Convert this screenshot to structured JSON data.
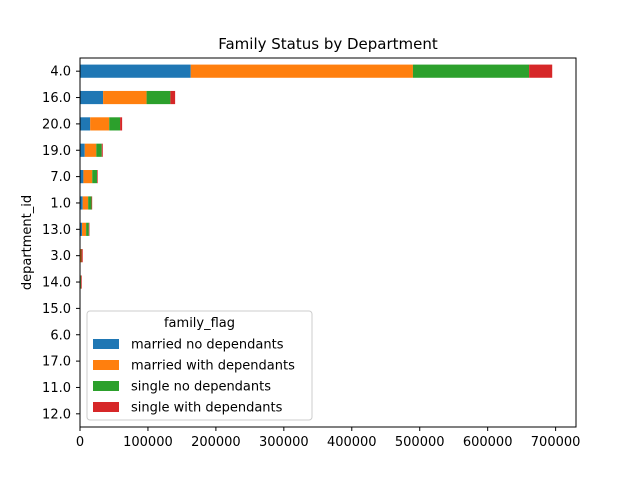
{
  "chart_data": {
    "type": "bar",
    "orientation": "horizontal",
    "stacked": true,
    "title": "Family Status by Department",
    "ylabel": "department_id",
    "xlabel": "",
    "categories": [
      "4.0",
      "16.0",
      "20.0",
      "19.0",
      "7.0",
      "1.0",
      "13.0",
      "3.0",
      "14.0",
      "15.0",
      "6.0",
      "17.0",
      "11.0",
      "12.0"
    ],
    "xlim": [
      0,
      730000
    ],
    "xticks": [
      0,
      100000,
      200000,
      300000,
      400000,
      500000,
      600000,
      700000
    ],
    "xtick_labels": [
      "0",
      "100000",
      "200000",
      "300000",
      "400000",
      "500000",
      "600000",
      "700000"
    ],
    "grid": false,
    "legend": {
      "title": "family_flag",
      "placement": "lower-left"
    },
    "series": [
      {
        "name": "married no dependants",
        "color": "#1f77b4",
        "values": [
          163000,
          34000,
          15000,
          7000,
          5000,
          4000,
          3000,
          500,
          300,
          0,
          0,
          0,
          0,
          0
        ]
      },
      {
        "name": "married with dependants",
        "color": "#ff7f0e",
        "values": [
          327000,
          64000,
          28000,
          17000,
          13000,
          8000,
          6000,
          1000,
          700,
          0,
          0,
          0,
          0,
          0
        ]
      },
      {
        "name": "single no dependants",
        "color": "#2ca02c",
        "values": [
          171000,
          35000,
          16000,
          8000,
          7000,
          5000,
          4000,
          500,
          500,
          0,
          0,
          0,
          0,
          0
        ]
      },
      {
        "name": "single with dependants",
        "color": "#d62728",
        "values": [
          34000,
          7000,
          3000,
          1500,
          1000,
          700,
          500,
          2000,
          1000,
          0,
          0,
          0,
          0,
          0
        ]
      }
    ]
  }
}
